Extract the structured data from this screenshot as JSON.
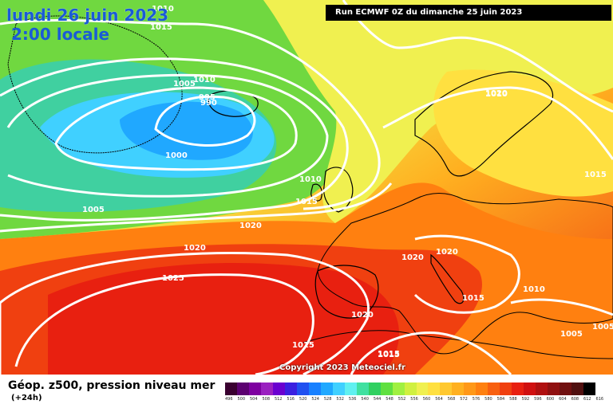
{
  "map": {
    "date_title": "lundi 26 juin 2023",
    "time_title": "2:00 locale",
    "run_banner": "Run ECMWF 0Z du dimanche 25 juin 2023",
    "copyright": "Copyright 2023 Meteociel.fr",
    "isobar_labels": [
      "1010",
      "1015",
      "1005",
      "1010",
      "995",
      "990",
      "1000",
      "1010",
      "1015",
      "1005",
      "1020",
      "1020",
      "1025",
      "1020",
      "1020",
      "1020",
      "1015",
      "1015",
      "1010",
      "1015",
      "1005",
      "1005",
      "1015",
      "1020",
      "1015",
      "1010"
    ],
    "colors": {
      "sea_level_line": "#ffffff",
      "coast": "#000000",
      "low_center": "#2fa0ff",
      "high_center": "#e8201a"
    }
  },
  "footer": {
    "title": "Géop. z500, pression niveau mer",
    "subtitle": "(+24h)",
    "legend_values": [
      "496",
      "500",
      "504",
      "508",
      "512",
      "516",
      "520",
      "524",
      "528",
      "532",
      "536",
      "540",
      "544",
      "548",
      "552",
      "556",
      "560",
      "564",
      "568",
      "572",
      "576",
      "580",
      "584",
      "588",
      "592",
      "596",
      "600",
      "604",
      "608",
      "612",
      "616"
    ],
    "legend_colors": [
      "#3a0030",
      "#5c0070",
      "#7e00a0",
      "#9a20c0",
      "#6a00d0",
      "#3a20e0",
      "#2050f0",
      "#1880ff",
      "#20a8ff",
      "#40d0ff",
      "#60f0f0",
      "#40e0a0",
      "#30d060",
      "#60e040",
      "#a0f040",
      "#d0f040",
      "#f0f050",
      "#ffe040",
      "#ffc830",
      "#ffb020",
      "#ff9818",
      "#ff8010",
      "#f86010",
      "#f04010",
      "#e82010",
      "#d01010",
      "#b01010",
      "#901010",
      "#701010",
      "#501010",
      "#000000"
    ]
  }
}
